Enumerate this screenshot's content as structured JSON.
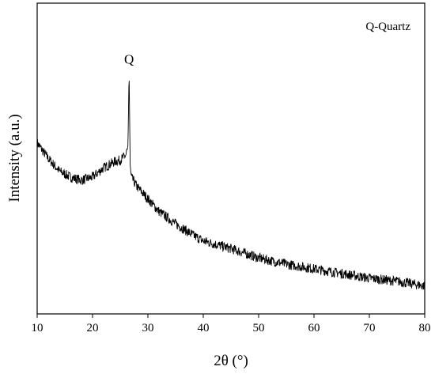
{
  "chart_data": {
    "type": "line",
    "title": "",
    "xlabel": "2θ (°)",
    "ylabel": "Intensity (a.u.)",
    "xlim": [
      10,
      80
    ],
    "ylim": [
      0,
      100
    ],
    "x_ticks": [
      "10",
      "20",
      "30",
      "40",
      "50",
      "60",
      "70",
      "80"
    ],
    "y_ticks_labeled": false,
    "grid": false,
    "legend_text": "Q-Quartz",
    "legend_placement": "top-right",
    "line_color": "#000000",
    "peaks": [
      {
        "label": "Q",
        "x": 26.6,
        "y": 78
      }
    ],
    "series": [
      {
        "x": [
          10,
          12,
          14,
          16,
          18,
          20,
          22,
          24,
          25,
          26,
          26.4,
          26.6,
          26.8,
          27,
          28,
          30,
          32,
          35,
          38,
          40,
          42,
          45,
          50,
          55,
          60,
          65,
          70,
          75,
          80
        ],
        "y": [
          55,
          50,
          46,
          44,
          43,
          44,
          47,
          49,
          49.5,
          51,
          54,
          78,
          48,
          44,
          41,
          37,
          33,
          29,
          25.5,
          23.5,
          22.5,
          21,
          18,
          16,
          14.5,
          13,
          11.5,
          10.5,
          9
        ]
      }
    ]
  }
}
